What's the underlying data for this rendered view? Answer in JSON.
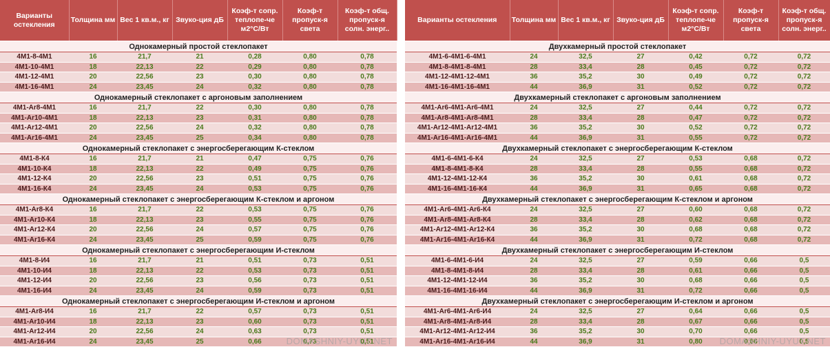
{
  "tables": [
    {
      "header": [
        "Варианты остекления",
        "Толщина мм",
        "Вес 1 кв.м., кг",
        "Звуко-ция дБ",
        "Коэф-т сопр. теплопе-че м2°С/Вт",
        "Коэф-т пропуск-я света",
        "Коэф-т общ. пропуск-я солн. энерг.."
      ],
      "sections": [
        {
          "title": "Однокамерный простой стеклопакет",
          "rows": [
            [
              "4М1-8-4М1",
              "16",
              "21,7",
              "21",
              "0,28",
              "0,80",
              "0,78"
            ],
            [
              "4М1-10-4М1",
              "18",
              "22,13",
              "22",
              "0,29",
              "0,80",
              "0,78"
            ],
            [
              "4М1-12-4М1",
              "20",
              "22,56",
              "23",
              "0,30",
              "0,80",
              "0,78"
            ],
            [
              "4М1-16-4М1",
              "24",
              "23,45",
              "24",
              "0,32",
              "0,80",
              "0,78"
            ]
          ]
        },
        {
          "title": "Однокамерный стеклопакет с аргоновым заполнением",
          "rows": [
            [
              "4М1-Ar8-4М1",
              "16",
              "21,7",
              "22",
              "0,30",
              "0,80",
              "0,78"
            ],
            [
              "4М1-Ar10-4М1",
              "18",
              "22,13",
              "23",
              "0,31",
              "0,80",
              "0,78"
            ],
            [
              "4М1-Ar12-4М1",
              "20",
              "22,56",
              "24",
              "0,32",
              "0,80",
              "0,78"
            ],
            [
              "4М1-Ar16-4М1",
              "24",
              "23,45",
              "25",
              "0,34",
              "0,80",
              "0,78"
            ]
          ]
        },
        {
          "title": "Однокамерный стеклопакет с энергосберегающим К-стеклом",
          "rows": [
            [
              "4М1-8-К4",
              "16",
              "21,7",
              "21",
              "0,47",
              "0,75",
              "0,76"
            ],
            [
              "4М1-10-К4",
              "18",
              "22,13",
              "22",
              "0,49",
              "0,75",
              "0,76"
            ],
            [
              "4М1-12-К4",
              "20",
              "22,56",
              "23",
              "0,51",
              "0,75",
              "0,76"
            ],
            [
              "4М1-16-К4",
              "24",
              "23,45",
              "24",
              "0,53",
              "0,75",
              "0,76"
            ]
          ]
        },
        {
          "title": "Однокамерный стеклопакет с энергосберегающим К-стеклом и аргоном",
          "rows": [
            [
              "4М1-Ar8-К4",
              "16",
              "21,7",
              "22",
              "0,53",
              "0,75",
              "0,76"
            ],
            [
              "4М1-Ar10-К4",
              "18",
              "22,13",
              "23",
              "0,55",
              "0,75",
              "0,76"
            ],
            [
              "4М1-Ar12-К4",
              "20",
              "22,56",
              "24",
              "0,57",
              "0,75",
              "0,76"
            ],
            [
              "4М1-Ar16-К4",
              "24",
              "23,45",
              "25",
              "0,59",
              "0,75",
              "0,76"
            ]
          ]
        },
        {
          "title": "Однокамерный стеклопакет с энергосберегающим И-стеклом",
          "rows": [
            [
              "4М1-8-И4",
              "16",
              "21,7",
              "21",
              "0,51",
              "0,73",
              "0,51"
            ],
            [
              "4М1-10-И4",
              "18",
              "22,13",
              "22",
              "0,53",
              "0,73",
              "0,51"
            ],
            [
              "4М1-12-И4",
              "20",
              "22,56",
              "23",
              "0,56",
              "0,73",
              "0,51"
            ],
            [
              "4М1-16-И4",
              "24",
              "23,45",
              "24",
              "0,59",
              "0,73",
              "0,51"
            ]
          ]
        },
        {
          "title": "Однокамерный стеклопакет с энергосберегающим И-стеклом и аргоном",
          "rows": [
            [
              "4М1-Ar8-И4",
              "16",
              "21,7",
              "22",
              "0,57",
              "0,73",
              "0,51"
            ],
            [
              "4М1-Ar10-И4",
              "18",
              "22,13",
              "23",
              "0,60",
              "0,73",
              "0,51"
            ],
            [
              "4М1-Ar12-И4",
              "20",
              "22,56",
              "24",
              "0,63",
              "0,73",
              "0,51"
            ],
            [
              "4М1-Ar16-И4",
              "24",
              "23,45",
              "25",
              "0,66",
              "0,73",
              "0,51"
            ]
          ]
        }
      ],
      "watermark": "DOMASHNIY-UYUT.NET"
    },
    {
      "header": [
        "Варианты остекления",
        "Толщина мм",
        "Вес 1 кв.м., кг",
        "Звуко-ция дБ",
        "Коэф-т сопр. теплопе-че м2°С/Вт",
        "Коэф-т пропуск-я света",
        "Коэф-т общ. пропуск-я солн. энерг.."
      ],
      "sections": [
        {
          "title": "Двухкамерный простой стеклопакет",
          "rows": [
            [
              "4М1-6-4М1-6-4М1",
              "24",
              "32,5",
              "27",
              "0,42",
              "0,72",
              "0,72"
            ],
            [
              "4М1-8-4М1-8-4М1",
              "28",
              "33,4",
              "28",
              "0,45",
              "0,72",
              "0,72"
            ],
            [
              "4М1-12-4М1-12-4М1",
              "36",
              "35,2",
              "30",
              "0,49",
              "0,72",
              "0,72"
            ],
            [
              "4М1-16-4М1-16-4М1",
              "44",
              "36,9",
              "31",
              "0,52",
              "0,72",
              "0,72"
            ]
          ]
        },
        {
          "title": "Двухкамерный стеклопакет с аргоновым заполнением",
          "rows": [
            [
              "4М1-Ar6-4М1-Ar6-4М1",
              "24",
              "32,5",
              "27",
              "0,44",
              "0,72",
              "0,72"
            ],
            [
              "4М1-Ar8-4М1-Ar8-4М1",
              "28",
              "33,4",
              "28",
              "0,47",
              "0,72",
              "0,72"
            ],
            [
              "4М1-Ar12-4М1-Ar12-4М1",
              "36",
              "35,2",
              "30",
              "0,52",
              "0,72",
              "0,72"
            ],
            [
              "4М1-Ar16-4М1-Ar16-4М1",
              "44",
              "36,9",
              "31",
              "0,55",
              "0,72",
              "0,72"
            ]
          ]
        },
        {
          "title": "Двухкамерный стеклопакет с энергосберегающим К-стеклом",
          "rows": [
            [
              "4М1-6-4М1-6-К4",
              "24",
              "32,5",
              "27",
              "0,53",
              "0,68",
              "0,72"
            ],
            [
              "4М1-8-4М1-8-К4",
              "28",
              "33,4",
              "28",
              "0,55",
              "0,68",
              "0,72"
            ],
            [
              "4М1-12-4М1-12-К4",
              "36",
              "35,2",
              "30",
              "0,61",
              "0,68",
              "0,72"
            ],
            [
              "4М1-16-4М1-16-К4",
              "44",
              "36,9",
              "31",
              "0,65",
              "0,68",
              "0,72"
            ]
          ]
        },
        {
          "title": "Двухкамерный стеклопакет с энергосберегающим К-стеклом и аргоном",
          "rows": [
            [
              "4М1-Ar6-4М1-Ar6-К4",
              "24",
              "32,5",
              "27",
              "0,60",
              "0,68",
              "0,72"
            ],
            [
              "4М1-Ar8-4М1-Ar8-К4",
              "28",
              "33,4",
              "28",
              "0,62",
              "0,68",
              "0,72"
            ],
            [
              "4М1-Ar12-4М1-Ar12-К4",
              "36",
              "35,2",
              "30",
              "0,68",
              "0,68",
              "0,72"
            ],
            [
              "4М1-Ar16-4М1-Ar16-К4",
              "44",
              "36,9",
              "31",
              "0,72",
              "0,68",
              "0,72"
            ]
          ]
        },
        {
          "title": "Двухкамерный стеклопакет с энергосберегающим И-стеклом",
          "rows": [
            [
              "4М1-6-4М1-6-И4",
              "24",
              "32,5",
              "27",
              "0,59",
              "0,66",
              "0,5"
            ],
            [
              "4М1-8-4М1-8-И4",
              "28",
              "33,4",
              "28",
              "0,61",
              "0,66",
              "0,5"
            ],
            [
              "4М1-12-4М1-12-И4",
              "36",
              "35,2",
              "30",
              "0,68",
              "0,66",
              "0,5"
            ],
            [
              "4М1-16-4М1-16-И4",
              "44",
              "36,9",
              "31",
              "0,72",
              "0,66",
              "0,5"
            ]
          ]
        },
        {
          "title": "Двухкамерный стеклопакет с энергосберегающим И-стеклом и аргоном",
          "rows": [
            [
              "4М1-Ar6-4М1-Ar6-И4",
              "24",
              "32,5",
              "27",
              "0,64",
              "0,66",
              "0,5"
            ],
            [
              "4М1-Ar8-4М1-Ar8-И4",
              "28",
              "33,4",
              "28",
              "0,67",
              "0,66",
              "0,5"
            ],
            [
              "4М1-Ar12-4М1-Ar12-И4",
              "36",
              "35,2",
              "30",
              "0,70",
              "0,66",
              "0,5"
            ],
            [
              "4М1-Ar16-4М1-Ar16-И4",
              "44",
              "36,9",
              "31",
              "0,80",
              "0,66",
              "0,5"
            ]
          ]
        }
      ],
      "watermark": "DOMASHNIY-UYUT.NET"
    }
  ]
}
